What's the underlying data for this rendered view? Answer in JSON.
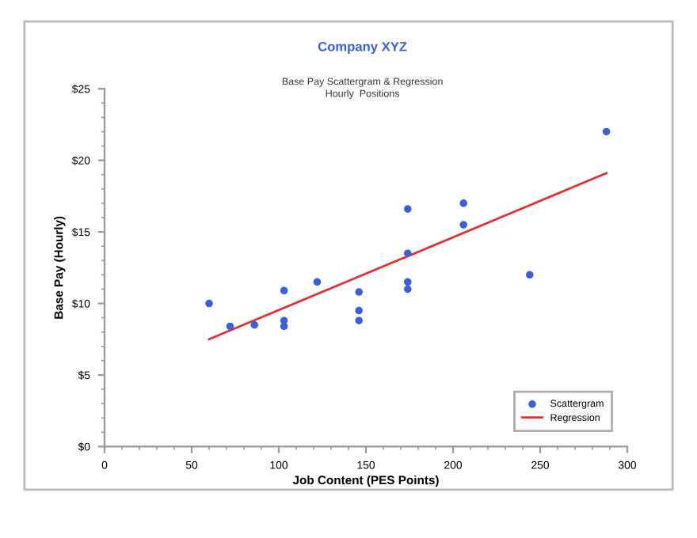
{
  "chart_data": {
    "type": "scatter",
    "title": "Company XYZ",
    "subtitle": "Base Pay Scattergram & Regression\nHourly  Positions",
    "xlabel": "Job Content (PES Points)",
    "ylabel": "Base Pay (Hourly)",
    "series": [
      {
        "name": "Scattergram",
        "marker": "circle",
        "color": "#3d5fd6",
        "x": [
          60,
          72,
          86,
          103,
          103,
          103,
          122,
          146,
          146,
          146,
          174,
          174,
          174,
          174,
          206,
          206,
          244,
          288
        ],
        "values": [
          10.0,
          8.4,
          8.5,
          10.9,
          8.8,
          8.4,
          11.5,
          10.8,
          9.5,
          8.8,
          16.6,
          13.5,
          11.5,
          11.0,
          17.0,
          15.5,
          12.0,
          22.0
        ]
      },
      {
        "name": "Regression",
        "type": "line",
        "marker": "none",
        "color": "#e03030",
        "x": [
          60,
          288
        ],
        "values": [
          7.5,
          19.1
        ]
      }
    ],
    "xlim": [
      0,
      300
    ],
    "xticks": [
      0,
      50,
      100,
      150,
      200,
      250,
      300
    ],
    "ylim": [
      0,
      25
    ],
    "yticks": [
      {
        "value": 0,
        "label": "$0"
      },
      {
        "value": 5,
        "label": "$5"
      },
      {
        "value": 10,
        "label": "$10"
      },
      {
        "value": 15,
        "label": "$15"
      },
      {
        "value": 20,
        "label": "$20"
      },
      {
        "value": 25,
        "label": "$25"
      }
    ],
    "legend": "bottom right",
    "grid": false
  }
}
